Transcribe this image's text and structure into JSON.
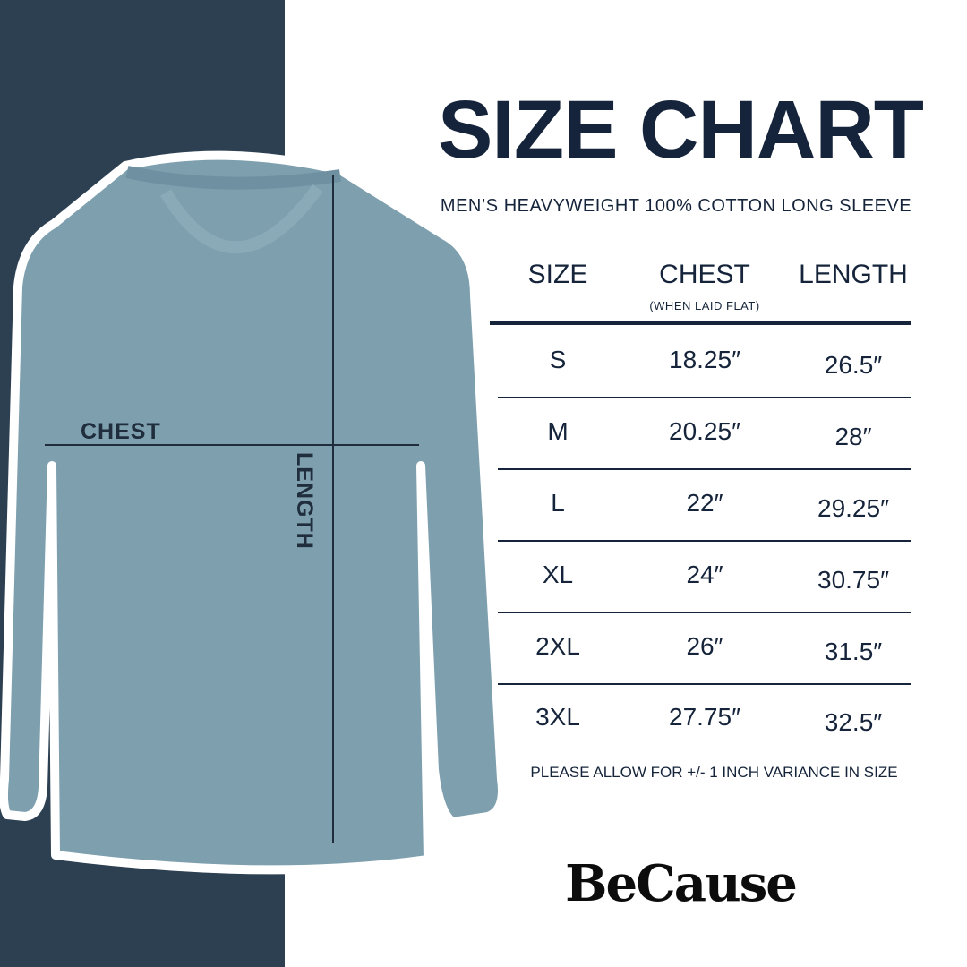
{
  "title": "SIZE CHART",
  "subtitle": "MEN’S HEAVYWEIGHT 100% COTTON LONG SLEEVE",
  "columns": [
    {
      "label": "SIZE",
      "sublabel": ""
    },
    {
      "label": "CHEST",
      "sublabel": "(WHEN LAID FLAT)"
    },
    {
      "label": "LENGTH",
      "sublabel": ""
    }
  ],
  "rows": [
    [
      "S",
      "18.25″",
      "26.5″"
    ],
    [
      "M",
      "20.25″",
      "28″"
    ],
    [
      "L",
      "22″",
      "29.25″"
    ],
    [
      "XL",
      "24″",
      "30.75″"
    ],
    [
      "2XL",
      "26″",
      "31.5″"
    ],
    [
      "3XL",
      "27.75″",
      "32.5″"
    ]
  ],
  "note": "PLEASE ALLOW FOR +/- 1 INCH VARIANCE IN SIZE",
  "diagram": {
    "chest_label": "CHEST",
    "length_label": "LENGTH"
  },
  "brand": "BeCause",
  "colors": {
    "navy": "#2d4052",
    "text": "#15243a",
    "shirt": "#7d9fae"
  }
}
